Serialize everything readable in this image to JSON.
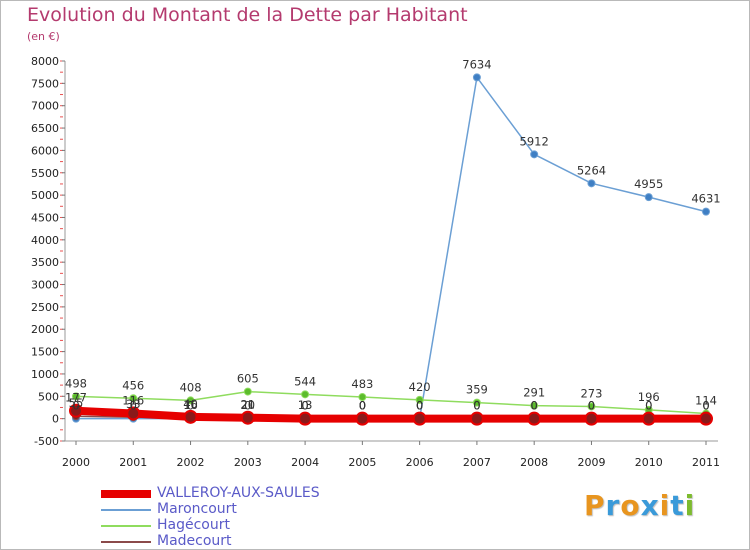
{
  "header": {
    "title": "Evolution du Montant de la Dette par Habitant",
    "subtitle": "(en €)"
  },
  "logo": {
    "letters": [
      "P",
      "r",
      "o",
      "x",
      "i",
      "t",
      "i"
    ],
    "colors": [
      "#e8951f",
      "#3a9ad9",
      "#e8951f",
      "#3a9ad9",
      "#e8951f",
      "#3a9ad9",
      "#7dbb2e"
    ]
  },
  "chart_data": {
    "type": "line",
    "title": "Evolution du Montant de la Dette par Habitant",
    "subtitle": "(en €)",
    "xlabel": "",
    "ylabel": "",
    "categories": [
      "2000",
      "2001",
      "2002",
      "2003",
      "2004",
      "2005",
      "2006",
      "2007",
      "2008",
      "2009",
      "2010",
      "2011"
    ],
    "ylim": [
      -500,
      8000
    ],
    "yticks": [
      -500,
      0,
      500,
      1000,
      1500,
      2000,
      2500,
      3000,
      3500,
      4000,
      4500,
      5000,
      5500,
      6000,
      6500,
      7000,
      7500,
      8000
    ],
    "grid": false,
    "legend_position": "bottom-left",
    "series": [
      {
        "name": "VALLEROY-AUX-SAULES",
        "color": "#e60000",
        "values": [
          177,
          116,
          40,
          21,
          0,
          0,
          0,
          0,
          0,
          0,
          0,
          0
        ],
        "labels": [
          "177",
          "116",
          "40",
          "21",
          "0",
          "0",
          "0",
          "0",
          "0",
          "0",
          "0",
          "0"
        ]
      },
      {
        "name": "Maroncourt",
        "color": "#6b9fd4",
        "values": [
          0,
          0,
          0,
          0,
          0,
          0,
          0,
          7634,
          5912,
          5264,
          4955,
          4631
        ],
        "labels": [
          "0",
          "0",
          "0",
          "0",
          "0",
          "0",
          "0",
          "7634",
          "5912",
          "5264",
          "4955",
          "4631"
        ]
      },
      {
        "name": "Hagécourt",
        "color": "#8fdc5e",
        "values": [
          498,
          456,
          408,
          605,
          544,
          483,
          420,
          359,
          291,
          273,
          196,
          114
        ],
        "labels": [
          "498",
          "456",
          "408",
          "605",
          "544",
          "483",
          "420",
          "359",
          "291",
          "273",
          "196",
          "114"
        ]
      },
      {
        "name": "Madecourt",
        "color": "#8b4a4a",
        "values": [
          55,
          33,
          16,
          20,
          13,
          0,
          0,
          0,
          0,
          0,
          0,
          0
        ],
        "labels": [
          "55",
          "33",
          "16",
          "20",
          "13",
          "0",
          "0",
          "0",
          "0",
          "0",
          "0",
          "0"
        ]
      }
    ]
  }
}
